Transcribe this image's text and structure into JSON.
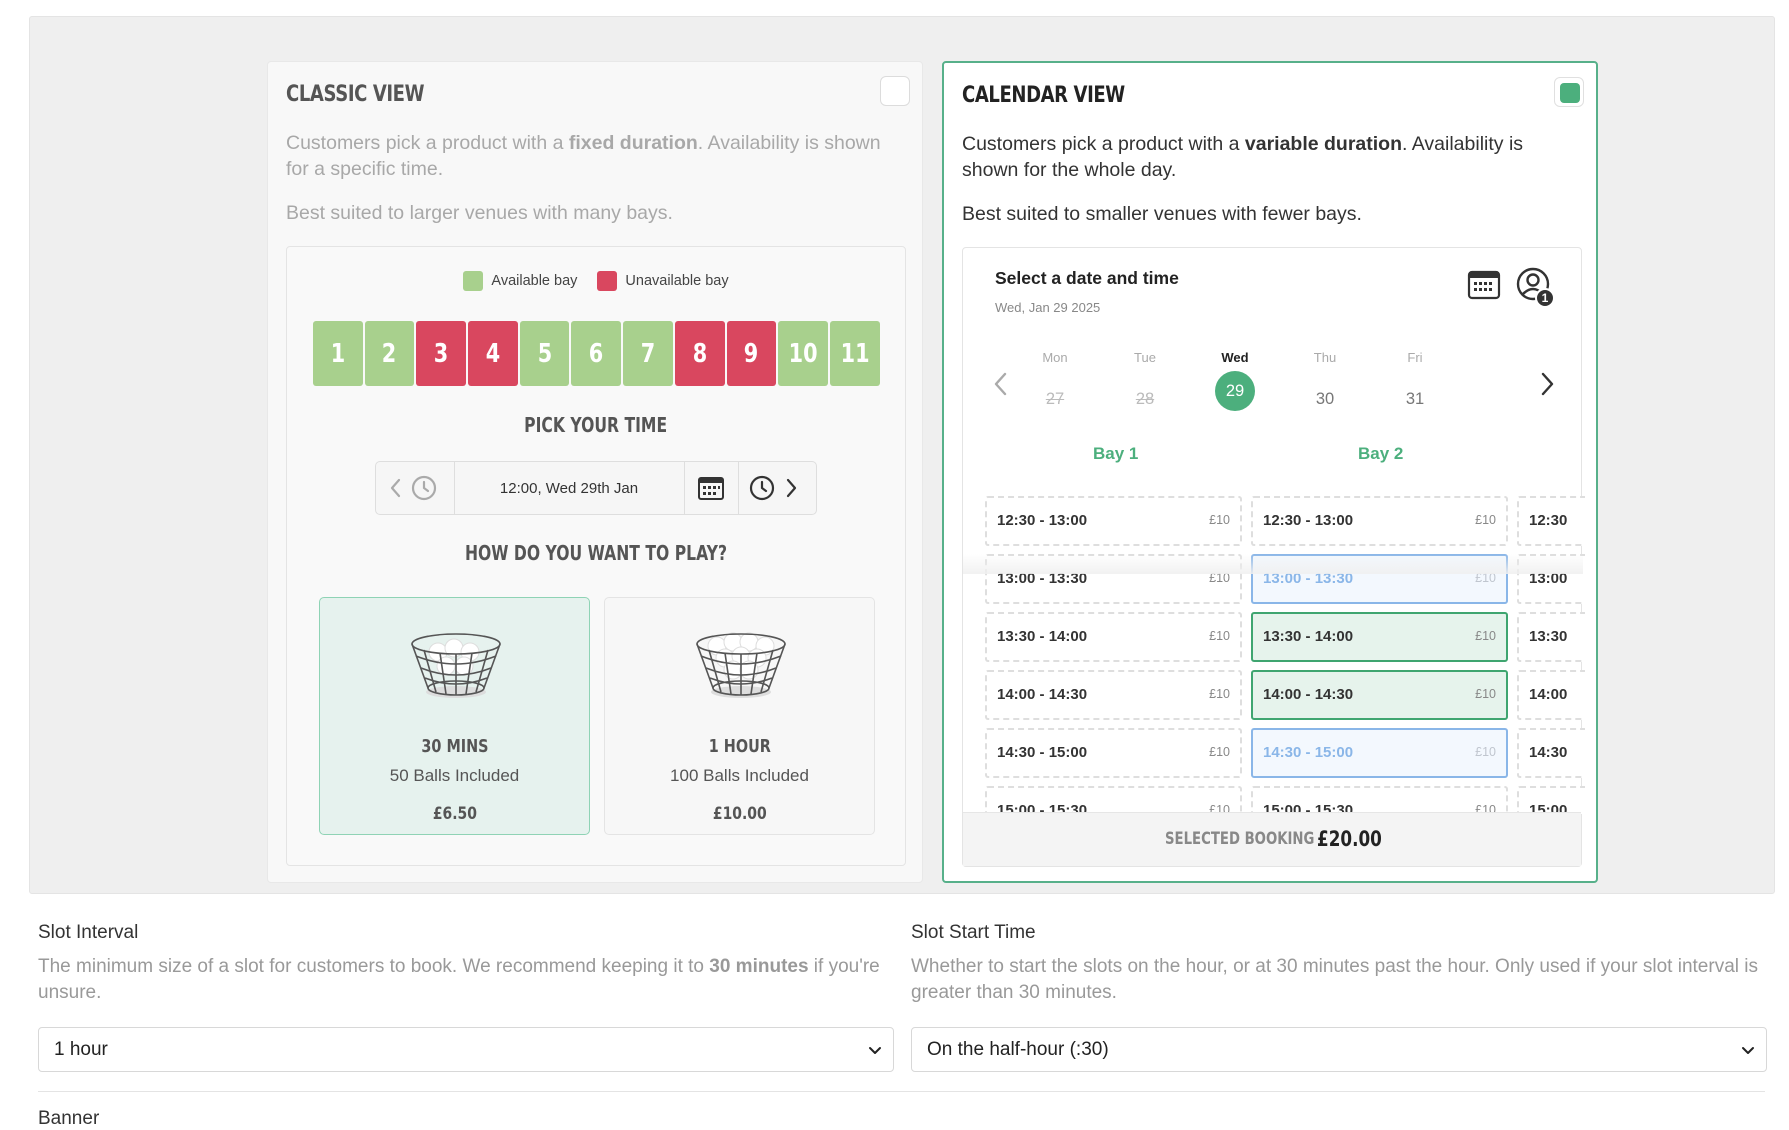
{
  "classic": {
    "title": "CLASSIC VIEW",
    "desc_pre": "Customers pick a product with a ",
    "desc_bold": "fixed duration",
    "desc_post": ". Availability is shown for a specific time.",
    "desc2": "Best suited to larger venues with many bays.",
    "selected": false,
    "legend": {
      "available": "Available bay",
      "unavailable": "Unavailable bay"
    },
    "colors": {
      "available": "#a8d08d",
      "unavailable": "#d9475f"
    },
    "bays": [
      {
        "label": "1",
        "status": "available"
      },
      {
        "label": "2",
        "status": "available"
      },
      {
        "label": "3",
        "status": "unavailable"
      },
      {
        "label": "4",
        "status": "unavailable"
      },
      {
        "label": "5",
        "status": "available"
      },
      {
        "label": "6",
        "status": "available"
      },
      {
        "label": "7",
        "status": "available"
      },
      {
        "label": "8",
        "status": "unavailable"
      },
      {
        "label": "9",
        "status": "unavailable"
      },
      {
        "label": "10",
        "status": "available"
      },
      {
        "label": "11",
        "status": "available"
      }
    ],
    "pick_time_heading": "PICK YOUR TIME",
    "time_value": "12:00, Wed 29th Jan",
    "how_play_heading": "HOW DO YOU WANT TO PLAY?",
    "products": [
      {
        "name": "30 MINS",
        "sub": "50 Balls Included",
        "price": "£6.50",
        "active": true
      },
      {
        "name": "1 HOUR",
        "sub": "100 Balls Included",
        "price": "£10.00",
        "active": false
      }
    ]
  },
  "calendar": {
    "title": "CALENDAR VIEW",
    "desc_pre": "Customers pick a product with a ",
    "desc_bold": "variable duration",
    "desc_post": ". Availability is shown for the whole day.",
    "desc2": "Best suited to smaller venues with fewer bays.",
    "selected": true,
    "select_title": "Select a date and time",
    "select_date": "Wed, Jan 29 2025",
    "user_count": "1",
    "days": [
      {
        "name": "Mon",
        "num": "27",
        "state": "past"
      },
      {
        "name": "Tue",
        "num": "28",
        "state": "past"
      },
      {
        "name": "Wed",
        "num": "29",
        "state": "today"
      },
      {
        "name": "Thu",
        "num": "30",
        "state": "future"
      },
      {
        "name": "Fri",
        "num": "31",
        "state": "future"
      }
    ],
    "bay_labels": [
      "Bay 1",
      "Bay 2"
    ],
    "columns": [
      [
        {
          "time": "12:30 - 13:00",
          "price": "£10",
          "state": "none"
        },
        {
          "time": "13:00 - 13:30",
          "price": "£10",
          "state": "none"
        },
        {
          "time": "13:30 - 14:00",
          "price": "£10",
          "state": "none"
        },
        {
          "time": "14:00 - 14:30",
          "price": "£10",
          "state": "none"
        },
        {
          "time": "14:30 - 15:00",
          "price": "£10",
          "state": "none"
        },
        {
          "time": "15:00 - 15:30",
          "price": "£10",
          "state": "none"
        }
      ],
      [
        {
          "time": "12:30 - 13:00",
          "price": "£10",
          "state": "none"
        },
        {
          "time": "13:00 - 13:30",
          "price": "£10",
          "state": "avail"
        },
        {
          "time": "13:30 - 14:00",
          "price": "£10",
          "state": "picked"
        },
        {
          "time": "14:00 - 14:30",
          "price": "£10",
          "state": "picked"
        },
        {
          "time": "14:30 - 15:00",
          "price": "£10",
          "state": "avail"
        },
        {
          "time": "15:00 - 15:30",
          "price": "£10",
          "state": "none"
        }
      ],
      [
        {
          "time": "12:30",
          "price": "",
          "state": "none"
        },
        {
          "time": "13:00",
          "price": "",
          "state": "none"
        },
        {
          "time": "13:30",
          "price": "",
          "state": "none"
        },
        {
          "time": "14:00",
          "price": "",
          "state": "none"
        },
        {
          "time": "14:30",
          "price": "",
          "state": "none"
        },
        {
          "time": "15:00",
          "price": "",
          "state": "none"
        }
      ]
    ],
    "booking_label": "SELECTED BOOKING",
    "booking_total": "£20.00"
  },
  "form": {
    "slot_interval": {
      "label": "Slot Interval",
      "help_pre": "The minimum size of a slot for customers to book. We recommend keeping it to ",
      "help_bold": "30 minutes",
      "help_post": " if you're unsure.",
      "value": "1 hour"
    },
    "slot_start": {
      "label": "Slot Start Time",
      "help": "Whether to start the slots on the hour, or at 30 minutes past the hour. Only used if your slot interval is greater than 30 minutes.",
      "value": "On the half-hour (:30)"
    },
    "next_label": "Banner"
  }
}
